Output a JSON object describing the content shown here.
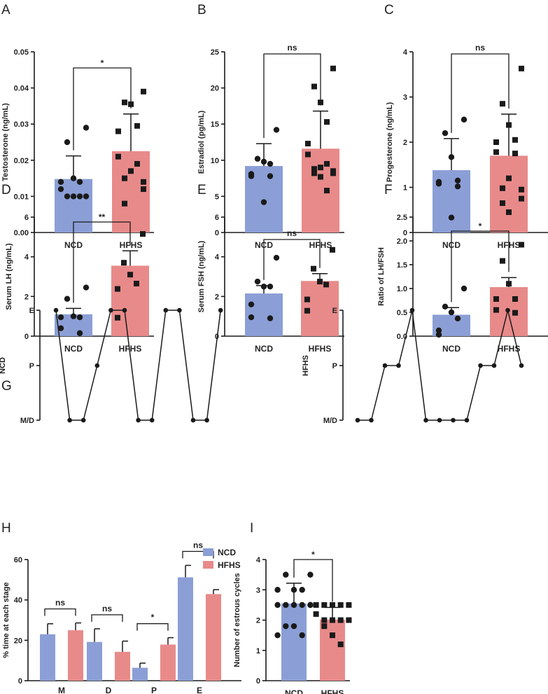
{
  "colors": {
    "ncd": "#8b9fd6",
    "hfhs": "#e88a8a",
    "ink": "#1a1a1a"
  },
  "chart_data": [
    {
      "panel": "A",
      "type": "bar",
      "categories": [
        "NCD",
        "HFHS"
      ],
      "ylabel": "Testosterone (ng/mL)",
      "ylim": [
        0,
        0.05
      ],
      "ticks": [
        0,
        0.01,
        0.02,
        0.03,
        0.04,
        0.05
      ],
      "tick_labels": [
        "0.00",
        "0.01",
        "0.02",
        "0.03",
        "0.04",
        "0.05"
      ],
      "series": [
        {
          "name": "NCD",
          "mean": 0.0148,
          "sem_upper": 0.0212,
          "points": [
            0.029,
            0.025,
            0.015,
            0.014,
            0.014,
            0.012,
            0.01,
            0.01,
            0.01,
            0.01
          ]
        },
        {
          "name": "HFHS",
          "mean": 0.0225,
          "sem_upper": 0.0328,
          "points": [
            0.039,
            0.036,
            0.0355,
            0.0295,
            0.028,
            0.021,
            0.019,
            0.017,
            0.015,
            0.014,
            0.012,
            0.008
          ]
        }
      ],
      "significance": "*"
    },
    {
      "panel": "B",
      "type": "bar",
      "categories": [
        "NCD",
        "HFHS"
      ],
      "ylabel": "Estradiol (pg/mL)",
      "ylim": [
        0,
        25
      ],
      "ticks": [
        0,
        5,
        10,
        15,
        20,
        25
      ],
      "tick_labels": [
        "0",
        "5",
        "10",
        "15",
        "20",
        "25"
      ],
      "series": [
        {
          "name": "NCD",
          "mean": 9.2,
          "sem_upper": 12.3,
          "points": [
            14.2,
            10.2,
            9.8,
            9.5,
            8.1,
            7.8,
            7.8,
            4.2
          ]
        },
        {
          "name": "HFHS",
          "mean": 11.6,
          "sem_upper": 16.8,
          "points": [
            22.7,
            20.2,
            18,
            15.3,
            12.3,
            10.8,
            9.5,
            9,
            8.8,
            8.5,
            8.2,
            8.2,
            7.7,
            5.8
          ]
        }
      ],
      "significance": "ns"
    },
    {
      "panel": "C",
      "type": "bar",
      "categories": [
        "NCD",
        "HFHS"
      ],
      "ylabel": "Progesterone (ng/mL)",
      "ylim": [
        0,
        4
      ],
      "ticks": [
        0,
        1,
        2,
        3,
        4
      ],
      "tick_labels": [
        "0",
        "1",
        "2",
        "3",
        "4"
      ],
      "series": [
        {
          "name": "NCD",
          "mean": 1.38,
          "sem_upper": 2.08,
          "points": [
            2.5,
            2.2,
            1.67,
            1.15,
            1.12,
            1.08,
            1.02,
            0.33
          ]
        },
        {
          "name": "HFHS",
          "mean": 1.7,
          "sem_upper": 2.62,
          "points": [
            3.63,
            2.85,
            2.38,
            2.05,
            2.0,
            1.78,
            1.75,
            1.2,
            0.98,
            0.95,
            0.75,
            0.65,
            0.45
          ]
        }
      ],
      "significance": "ns"
    },
    {
      "panel": "D",
      "type": "bar",
      "categories": [
        "NCD",
        "HFHS"
      ],
      "ylabel": "Serum LH (ng/mL)",
      "ylim": [
        0,
        6
      ],
      "ticks": [
        0,
        2,
        4,
        6
      ],
      "tick_labels": [
        "0",
        "2",
        "4",
        "6"
      ],
      "series": [
        {
          "name": "NCD",
          "mean": 1.1,
          "sem_upper": 1.4,
          "points": [
            2.45,
            1.88,
            1.0,
            0.95,
            0.95,
            0.4,
            0.15
          ]
        },
        {
          "name": "HFHS",
          "mean": 3.55,
          "sem_upper": 4.3,
          "points": [
            5.15,
            3.7,
            3.1,
            2.65,
            2.38,
            0.93
          ]
        }
      ],
      "significance": "**"
    },
    {
      "panel": "E",
      "type": "bar",
      "categories": [
        "NCD",
        "HFHS"
      ],
      "ylabel": "Serum FSH (ng/mL)",
      "ylim": [
        0,
        6
      ],
      "ticks": [
        0,
        2,
        4,
        6
      ],
      "tick_labels": [
        "0",
        "2",
        "4",
        "6"
      ],
      "series": [
        {
          "name": "NCD",
          "mean": 2.15,
          "sem_upper": 2.55,
          "points": [
            3.95,
            2.75,
            2.5,
            2.5,
            1.6,
            0.95,
            0.9
          ]
        },
        {
          "name": "HFHS",
          "mean": 2.78,
          "sem_upper": 3.15,
          "points": [
            4.35,
            3.4,
            2.75,
            2.6,
            1.85,
            1.28
          ]
        }
      ],
      "significance": "ns"
    },
    {
      "panel": "F",
      "type": "bar",
      "categories": [
        "NCD",
        "HFHS"
      ],
      "ylabel": "Ratio of LH/FSH",
      "ylim": [
        0,
        2.5
      ],
      "ticks": [
        0,
        0.5,
        1,
        1.5,
        2,
        2.5
      ],
      "tick_labels": [
        "0.0",
        "0.5",
        "1.0",
        "1.5",
        "2.0",
        "2.5"
      ],
      "series": [
        {
          "name": "NCD",
          "mean": 0.45,
          "sem_upper": 0.6,
          "points": [
            1.0,
            0.62,
            0.5,
            0.37,
            0.12,
            0.03
          ]
        },
        {
          "name": "HFHS",
          "mean": 1.03,
          "sem_upper": 1.23,
          "points": [
            1.92,
            1.58,
            1.1,
            0.78,
            0.78,
            0.55,
            0.49
          ]
        }
      ],
      "significance": "*"
    },
    {
      "panel": "G",
      "type": "line",
      "stage_labels": [
        "M/D",
        "P",
        "E"
      ],
      "series": [
        {
          "name": "NCD",
          "values": [
            "E",
            "M/D",
            "M/D",
            "P",
            "E",
            "E",
            "M/D",
            "M/D",
            "E",
            "E",
            "M/D",
            "M/D",
            "E"
          ]
        },
        {
          "name": "HFHS",
          "values": [
            "M/D",
            "M/D",
            "P",
            "P",
            "E",
            "M/D",
            "M/D",
            "M/D",
            "M/D",
            "P",
            "P",
            "E",
            "P"
          ]
        }
      ]
    },
    {
      "panel": "H",
      "type": "bar",
      "categories": [
        "M",
        "D",
        "P",
        "E"
      ],
      "ylabel": "% time at each stage",
      "ylim": [
        0,
        60
      ],
      "ticks": [
        0,
        20,
        40,
        60
      ],
      "tick_labels": [
        "0",
        "20",
        "40",
        "60"
      ],
      "legend": {
        "placement": "top-right",
        "entries": [
          "NCD",
          "HFHS"
        ]
      },
      "series": [
        {
          "name": "NCD",
          "values": [
            23,
            19.2,
            6.4,
            51.2
          ],
          "sem_upper": [
            28.2,
            25.7,
            8.7,
            57.1
          ]
        },
        {
          "name": "HFHS",
          "values": [
            25,
            14.3,
            17.9,
            42.9
          ],
          "sem_upper": [
            28.6,
            19.6,
            21.3,
            45.1
          ]
        }
      ],
      "significance": [
        "ns",
        "ns",
        "*",
        "ns"
      ]
    },
    {
      "panel": "I",
      "type": "bar",
      "categories": [
        "NCD",
        "HFHS"
      ],
      "ylabel": "Number of estrous cycles",
      "ylim": [
        0,
        4
      ],
      "ticks": [
        0,
        1,
        2,
        3,
        4
      ],
      "tick_labels": [
        "0",
        "1",
        "2",
        "3",
        "4"
      ],
      "series": [
        {
          "name": "NCD",
          "mean": 2.55,
          "sem_upper": 3.22,
          "points": [
            3.5,
            3.5,
            3,
            3,
            3,
            2.5,
            2.5,
            2.5,
            2.5,
            2.5,
            2.5,
            1.8,
            1.8,
            1.5,
            1.5
          ]
        },
        {
          "name": "HFHS",
          "mean": 2.02,
          "sem_upper": 2.42,
          "points": [
            2.5,
            2.5,
            2.5,
            2.5,
            2.5,
            2.2,
            2,
            2,
            2,
            2,
            2,
            1.8,
            1.5,
            1.2
          ]
        }
      ],
      "significance": "*"
    }
  ]
}
